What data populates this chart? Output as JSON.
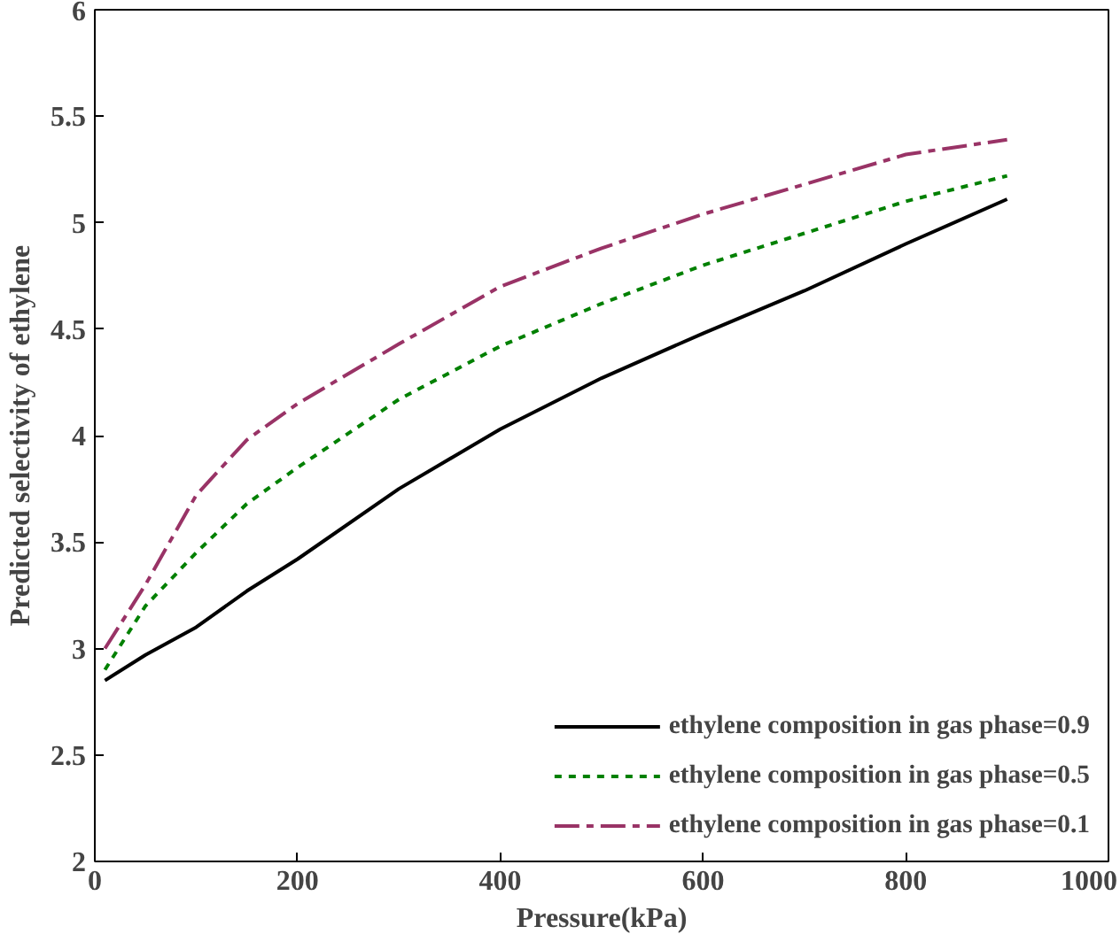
{
  "chart_data": {
    "type": "line",
    "xlabel": "Pressure(kPa)",
    "ylabel": "Predicted selectivity of ethylene",
    "xlim": [
      0,
      1000
    ],
    "ylim": [
      2,
      6
    ],
    "xticks": [
      0,
      200,
      400,
      600,
      800,
      1000
    ],
    "yticks": [
      2,
      2.5,
      3,
      3.5,
      4,
      4.5,
      5,
      5.5,
      6
    ],
    "grid": false,
    "legend": "bottom right",
    "marker": "none",
    "x": [
      10,
      50,
      100,
      150,
      200,
      300,
      400,
      500,
      600,
      700,
      800,
      900
    ],
    "series": [
      {
        "name": "ethylene composition in gas phase=0.9",
        "color": "#000000",
        "line_style": "solid",
        "values": [
          2.85,
          2.97,
          3.1,
          3.27,
          3.42,
          3.75,
          4.03,
          4.27,
          4.48,
          4.68,
          4.9,
          5.11
        ]
      },
      {
        "name": "ethylene composition in gas phase=0.5",
        "color": "#008000",
        "line_style": "dotted",
        "values": [
          2.9,
          3.2,
          3.45,
          3.68,
          3.85,
          4.17,
          4.42,
          4.62,
          4.8,
          4.95,
          5.1,
          5.22
        ]
      },
      {
        "name": "ethylene composition in gas phase=0.1",
        "color": "#993366",
        "line_style": "dashdot",
        "values": [
          3.0,
          3.3,
          3.72,
          3.98,
          4.15,
          4.43,
          4.7,
          4.88,
          5.04,
          5.18,
          5.32,
          5.39
        ]
      }
    ]
  }
}
